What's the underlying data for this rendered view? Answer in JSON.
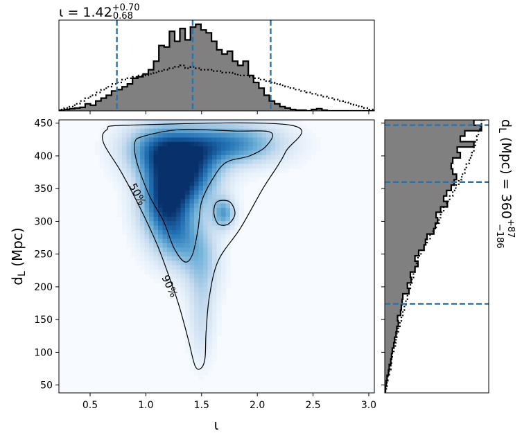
{
  "chart_data": [
    {
      "type": "histogram",
      "panel": "top-marginal",
      "x_range": [
        0.22,
        3.05
      ],
      "title_main": "ι = 1.42",
      "title_sup": "+0.70",
      "title_sub": "−0.68",
      "lines": [
        0.74,
        1.42,
        2.12
      ],
      "bin_edges_start": 0.22,
      "bin_width": 0.0472,
      "posterior": [
        1,
        2,
        3,
        4,
        5,
        10,
        8,
        14,
        18,
        22,
        28,
        30,
        34,
        38,
        46,
        48,
        52,
        58,
        70,
        92,
        90,
        112,
        98,
        116,
        100,
        118,
        122,
        114,
        110,
        98,
        86,
        80,
        84,
        70,
        64,
        70,
        50,
        40,
        32,
        22,
        14,
        10,
        6,
        4,
        2,
        1,
        1,
        0,
        2,
        3,
        1,
        0,
        0,
        0,
        0,
        0,
        0,
        0,
        0,
        0
      ],
      "prior": [
        2,
        4,
        6,
        10,
        14,
        18,
        22,
        26,
        30,
        34,
        38,
        40,
        44,
        46,
        48,
        50,
        50,
        52,
        54,
        56,
        58,
        60,
        62,
        64,
        60,
        62,
        60,
        58,
        58,
        56,
        56,
        54,
        54,
        52,
        50,
        50,
        48,
        46,
        44,
        42,
        40,
        38,
        36,
        34,
        32,
        30,
        28,
        26,
        24,
        22,
        20,
        18,
        16,
        14,
        12,
        10,
        8,
        6,
        4,
        2
      ]
    },
    {
      "type": "heatmap",
      "panel": "joint",
      "xlabel": "ι",
      "ylabel": "d_L (Mpc)",
      "xlim": [
        0.22,
        3.05
      ],
      "ylim": [
        38,
        455
      ],
      "xticks": [
        "0.5",
        "1.0",
        "1.5",
        "2.0",
        "2.5",
        "3.0"
      ],
      "yticks": [
        "50",
        "100",
        "150",
        "200",
        "250",
        "300",
        "350",
        "400",
        "450"
      ],
      "contour_labels": [
        "50%",
        "90%"
      ],
      "blobs": [
        {
          "x": 1.18,
          "y": 335,
          "sx": 0.16,
          "sy": 45,
          "a": 1.0
        },
        {
          "x": 1.42,
          "y": 375,
          "sx": 0.18,
          "sy": 35,
          "a": 0.75
        },
        {
          "x": 1.75,
          "y": 418,
          "sx": 0.32,
          "sy": 22,
          "a": 0.7
        },
        {
          "x": 1.1,
          "y": 410,
          "sx": 0.22,
          "sy": 28,
          "a": 0.62
        },
        {
          "x": 1.7,
          "y": 312,
          "sx": 0.07,
          "sy": 16,
          "a": 0.55
        },
        {
          "x": 1.5,
          "y": 240,
          "sx": 0.12,
          "sy": 40,
          "a": 0.35
        },
        {
          "x": 1.5,
          "y": 150,
          "sx": 0.08,
          "sy": 45,
          "a": 0.22
        },
        {
          "x": 1.3,
          "y": 270,
          "sx": 0.14,
          "sy": 30,
          "a": 0.35
        }
      ],
      "contour_90": [
        [
          0.85,
          447
        ],
        [
          2.3,
          447
        ],
        [
          2.25,
          405
        ],
        [
          2.05,
          350
        ],
        [
          1.85,
          290
        ],
        [
          1.65,
          240
        ],
        [
          1.57,
          185
        ],
        [
          1.54,
          130
        ],
        [
          1.53,
          90
        ],
        [
          1.49,
          75
        ],
        [
          1.44,
          80
        ],
        [
          1.38,
          120
        ],
        [
          1.3,
          170
        ],
        [
          1.22,
          210
        ],
        [
          1.1,
          265
        ],
        [
          0.95,
          320
        ],
        [
          0.78,
          375
        ],
        [
          0.62,
          420
        ],
        [
          0.65,
          440
        ]
      ],
      "contour_50": [
        [
          0.98,
          430
        ],
        [
          1.3,
          440
        ],
        [
          1.8,
          438
        ],
        [
          2.12,
          436
        ],
        [
          2.08,
          415
        ],
        [
          1.93,
          400
        ],
        [
          1.72,
          390
        ],
        [
          1.6,
          365
        ],
        [
          1.5,
          330
        ],
        [
          1.47,
          290
        ],
        [
          1.42,
          250
        ],
        [
          1.35,
          238
        ],
        [
          1.25,
          260
        ],
        [
          1.16,
          300
        ],
        [
          1.03,
          340
        ],
        [
          0.92,
          390
        ],
        [
          0.9,
          420
        ]
      ],
      "contour_island": [
        [
          1.64,
          330
        ],
        [
          1.75,
          330
        ],
        [
          1.8,
          312
        ],
        [
          1.74,
          296
        ],
        [
          1.65,
          296
        ],
        [
          1.61,
          314
        ]
      ]
    },
    {
      "type": "histogram",
      "panel": "right-marginal",
      "y_range": [
        38,
        455
      ],
      "title_main": "d_L (Mpc) = 360",
      "title_sup": "+87",
      "title_sub": "−186",
      "lines": [
        174,
        360,
        447
      ],
      "bin_edges_start": 40,
      "bin_width": 8.3,
      "posterior": [
        1,
        2,
        3,
        5,
        6,
        8,
        9,
        10,
        12,
        13,
        15,
        16,
        18,
        17,
        21,
        22,
        23,
        24,
        32,
        30,
        35,
        34,
        40,
        44,
        40,
        45,
        52,
        54,
        56,
        65,
        67,
        70,
        68,
        74,
        83,
        78,
        82,
        88,
        92,
        95,
        90,
        88,
        90,
        100,
        96,
        118,
        100,
        106,
        128,
        118,
        132
      ],
      "prior": [
        2,
        3,
        4,
        6,
        8,
        9,
        10,
        12,
        14,
        15,
        16,
        18,
        20,
        22,
        24,
        26,
        28,
        30,
        32,
        34,
        36,
        38,
        40,
        42,
        44,
        48,
        52,
        56,
        60,
        64,
        68,
        72,
        74,
        78,
        82,
        86,
        90,
        94,
        98,
        102,
        106,
        108,
        112,
        115,
        118,
        120,
        122,
        124,
        126,
        128,
        130
      ]
    }
  ]
}
